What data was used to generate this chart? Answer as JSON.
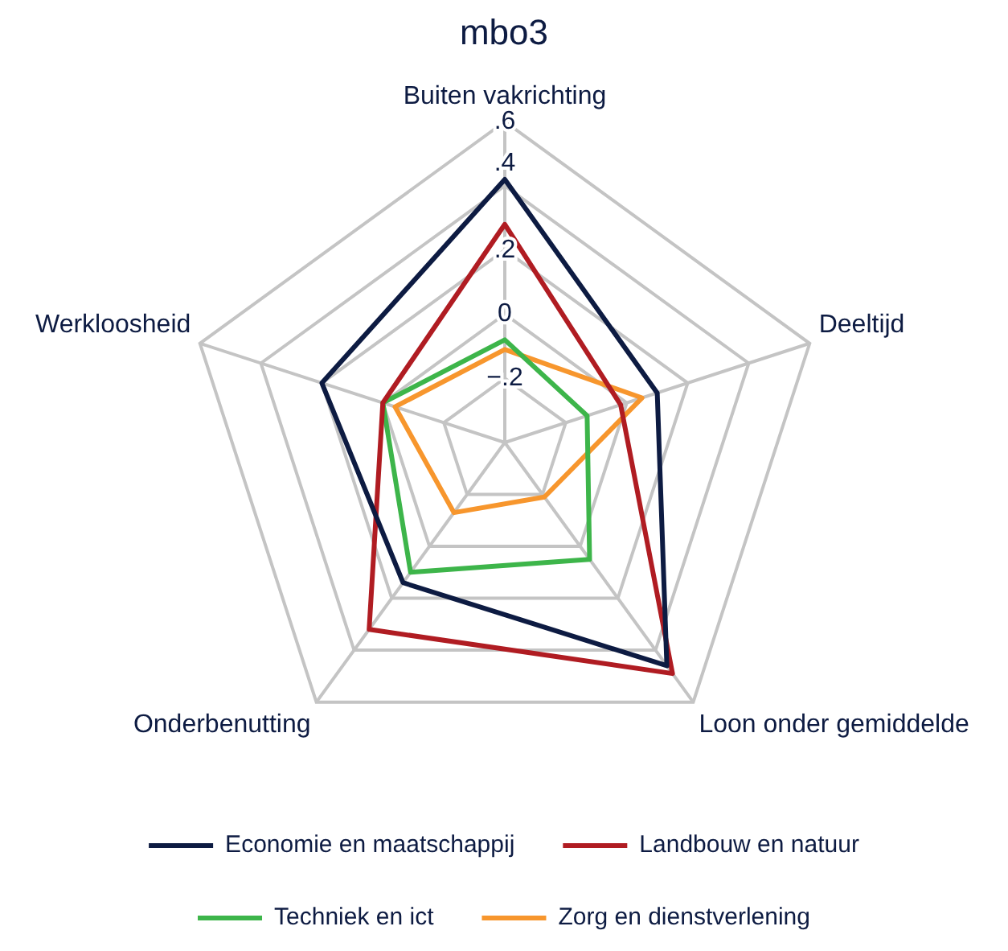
{
  "chart_data": {
    "type": "radar",
    "title": "mbo3",
    "categories": [
      "Buiten vakrichting",
      "Deeltijd",
      "Loon onder gemiddelde",
      "Onderbenutting",
      "Werkloosheid"
    ],
    "ylim": [
      -0.4,
      0.6
    ],
    "yticks": [
      {
        "value": -0.2,
        "label": "−.2"
      },
      {
        "value": 0,
        "label": "0"
      },
      {
        "value": 0.2,
        "label": ".2"
      },
      {
        "value": 0.4,
        "label": ".4"
      },
      {
        "value": 0.6,
        "label": ".6"
      }
    ],
    "grid": true,
    "legend": "bottom",
    "marker": "none",
    "series": [
      {
        "name": "Economie en maatschappij",
        "color": "#0d1b42",
        "values": [
          0.42,
          0.1,
          0.46,
          0.14,
          0.2
        ]
      },
      {
        "name": "Landbouw en natuur",
        "color": "#b01c22",
        "values": [
          0.28,
          -0.02,
          0.49,
          0.32,
          0.0
        ]
      },
      {
        "name": "Techniek en ict",
        "color": "#3db54a",
        "values": [
          -0.08,
          -0.13,
          0.05,
          0.1,
          0.0
        ]
      },
      {
        "name": "Zorg en dienstverlening",
        "color": "#f7962d",
        "values": [
          -0.11,
          0.05,
          -0.19,
          -0.13,
          -0.04
        ]
      }
    ]
  }
}
